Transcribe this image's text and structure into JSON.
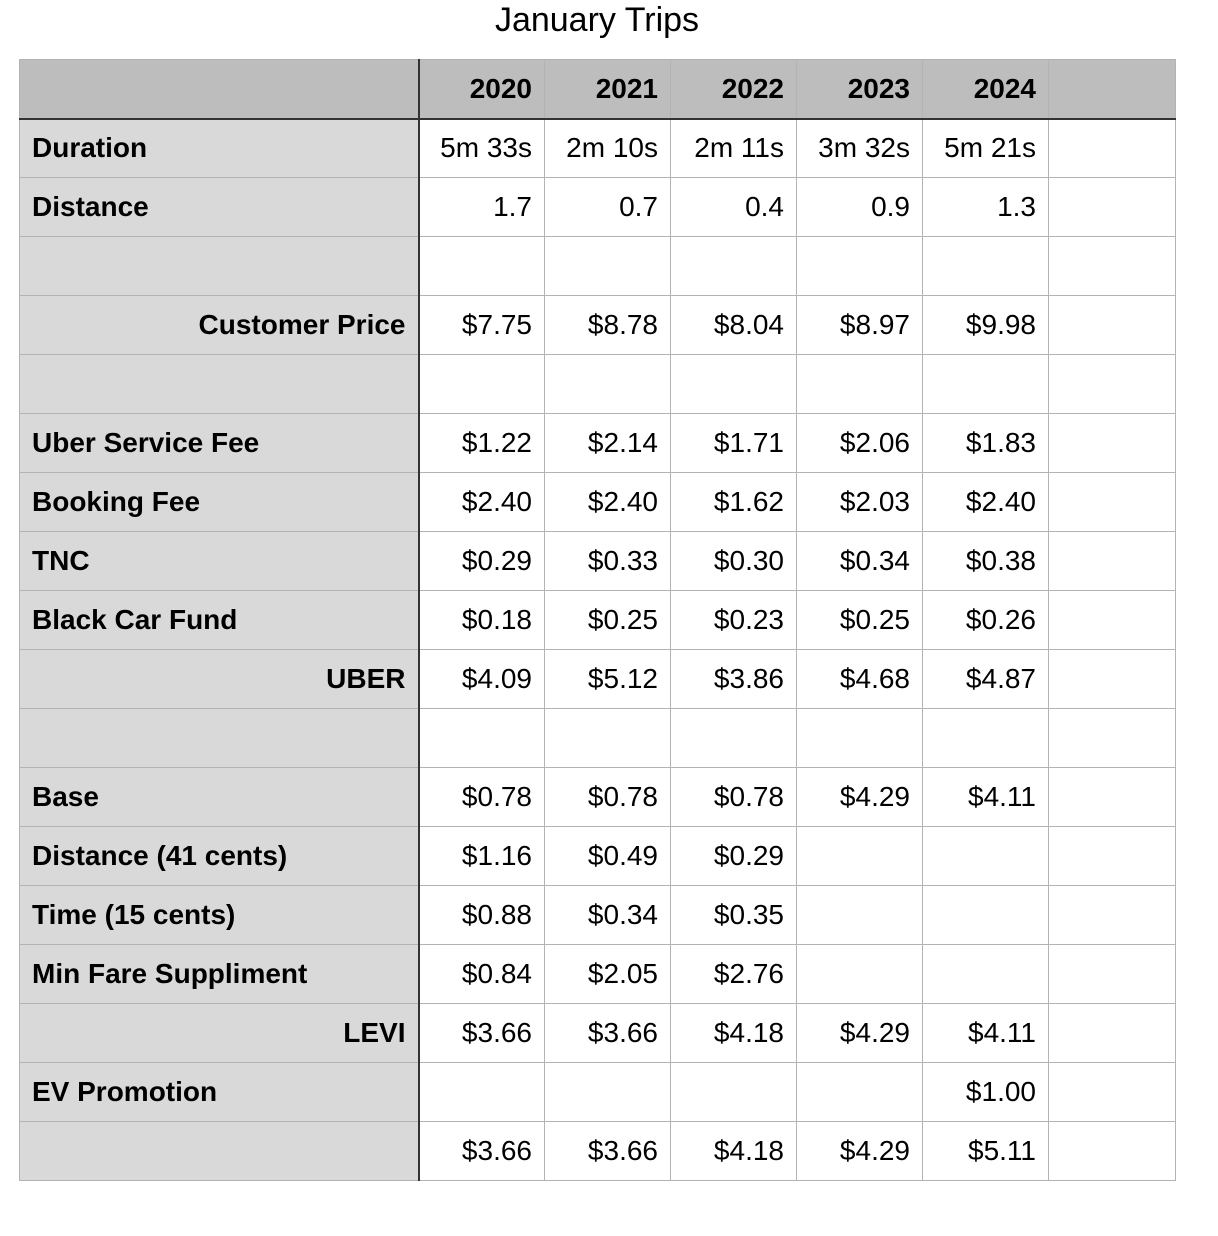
{
  "title": "January Trips",
  "years": [
    "2020",
    "2021",
    "2022",
    "2023",
    "2024"
  ],
  "rows": [
    {
      "label": "Duration",
      "total": false,
      "values": [
        "5m 33s",
        "2m 10s",
        "2m 11s",
        "3m 32s",
        "5m 21s"
      ]
    },
    {
      "label": "Distance",
      "total": false,
      "values": [
        "1.7",
        "0.7",
        "0.4",
        "0.9",
        "1.3"
      ]
    },
    {
      "label": "",
      "total": false,
      "values": [
        "",
        "",
        "",
        "",
        ""
      ]
    },
    {
      "label": "Customer Price",
      "total": true,
      "values": [
        "$7.75",
        "$8.78",
        "$8.04",
        "$8.97",
        "$9.98"
      ]
    },
    {
      "label": "",
      "total": false,
      "values": [
        "",
        "",
        "",
        "",
        ""
      ]
    },
    {
      "label": "Uber Service Fee",
      "total": false,
      "values": [
        "$1.22",
        "$2.14",
        "$1.71",
        "$2.06",
        "$1.83"
      ]
    },
    {
      "label": "Booking Fee",
      "total": false,
      "values": [
        "$2.40",
        "$2.40",
        "$1.62",
        "$2.03",
        "$2.40"
      ]
    },
    {
      "label": "TNC",
      "total": false,
      "values": [
        "$0.29",
        "$0.33",
        "$0.30",
        "$0.34",
        "$0.38"
      ]
    },
    {
      "label": "Black Car Fund",
      "total": false,
      "values": [
        "$0.18",
        "$0.25",
        "$0.23",
        "$0.25",
        "$0.26"
      ]
    },
    {
      "label": "UBER",
      "total": true,
      "values": [
        "$4.09",
        "$5.12",
        "$3.86",
        "$4.68",
        "$4.87"
      ]
    },
    {
      "label": "",
      "total": false,
      "values": [
        "",
        "",
        "",
        "",
        ""
      ]
    },
    {
      "label": "Base",
      "total": false,
      "values": [
        "$0.78",
        "$0.78",
        "$0.78",
        "$4.29",
        "$4.11"
      ]
    },
    {
      "label": "Distance (41 cents)",
      "total": false,
      "values": [
        "$1.16",
        "$0.49",
        "$0.29",
        "",
        ""
      ]
    },
    {
      "label": "Time (15 cents)",
      "total": false,
      "values": [
        "$0.88",
        "$0.34",
        "$0.35",
        "",
        ""
      ]
    },
    {
      "label": "Min Fare Suppliment",
      "total": false,
      "values": [
        "$0.84",
        "$2.05",
        "$2.76",
        "",
        ""
      ]
    },
    {
      "label": "LEVI",
      "total": true,
      "values": [
        "$3.66",
        "$3.66",
        "$4.18",
        "$4.29",
        "$4.11"
      ]
    },
    {
      "label": "EV Promotion",
      "total": false,
      "values": [
        "",
        "",
        "",
        "",
        "$1.00"
      ]
    },
    {
      "label": "",
      "total": false,
      "values": [
        "$3.66",
        "$3.66",
        "$4.18",
        "$4.29",
        "$5.11"
      ]
    }
  ],
  "colors": {
    "header_bg": "#bdbdbd",
    "label_bg": "#d9d9d9",
    "grid": "#b3b3b3",
    "frame": "#333333"
  }
}
